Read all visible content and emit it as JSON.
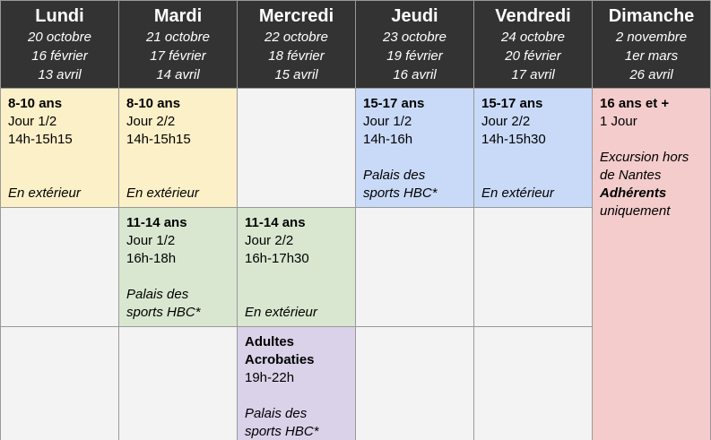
{
  "colors": {
    "header_bg": "#333333",
    "header_text": "#ffffff",
    "border": "#999999",
    "yellow": "#fcf0c8",
    "green": "#d9e7d0",
    "blue": "#c9daf8",
    "purple": "#d9d2e9",
    "pink": "#f4cccc",
    "empty": "#f3f3f3"
  },
  "header": {
    "columns": [
      {
        "day": "Lundi",
        "dates": [
          "20 octobre",
          "16 février",
          "13 avril"
        ]
      },
      {
        "day": "Mardi",
        "dates": [
          "21 octobre",
          "17 février",
          "14 avril"
        ]
      },
      {
        "day": "Mercredi",
        "dates": [
          "22 octobre",
          "18 février",
          "15 avril"
        ]
      },
      {
        "day": "Jeudi",
        "dates": [
          "23 octobre",
          "19 février",
          "16 avril"
        ]
      },
      {
        "day": "Vendredi",
        "dates": [
          "24 octobre",
          "20 février",
          "17 avril"
        ]
      },
      {
        "day": "Dimanche",
        "dates": [
          "2 novembre",
          "1er mars",
          "26 avril"
        ]
      }
    ]
  },
  "grid": {
    "rows": [
      [
        {
          "color": "yellow",
          "lines": [
            {
              "t": "8-10 ans",
              "s": "b"
            },
            {
              "t": "Jour 1/2"
            },
            {
              "t": "14h-15h15"
            },
            {
              "t": ""
            },
            {
              "t": ""
            },
            {
              "t": "En extérieur",
              "s": "i"
            }
          ]
        },
        {
          "color": "yellow",
          "lines": [
            {
              "t": "8-10 ans",
              "s": "b"
            },
            {
              "t": "Jour 2/2"
            },
            {
              "t": "14h-15h15"
            },
            {
              "t": ""
            },
            {
              "t": ""
            },
            {
              "t": "En extérieur",
              "s": "i"
            }
          ]
        },
        {
          "color": "empty",
          "lines": []
        },
        {
          "color": "blue",
          "lines": [
            {
              "t": "15-17 ans",
              "s": "b"
            },
            {
              "t": "Jour 1/2"
            },
            {
              "t": "14h-16h"
            },
            {
              "t": ""
            },
            {
              "t": "Palais des",
              "s": "i"
            },
            {
              "t": "sports HBC*",
              "s": "i"
            }
          ]
        },
        {
          "color": "blue",
          "lines": [
            {
              "t": "15-17 ans",
              "s": "b"
            },
            {
              "t": "Jour 2/2"
            },
            {
              "t": "14h-15h30"
            },
            {
              "t": ""
            },
            {
              "t": ""
            },
            {
              "t": "En extérieur",
              "s": "i"
            }
          ]
        },
        {
          "color": "pink",
          "rowspan": 3,
          "lines": [
            {
              "t": "16 ans et +",
              "s": "b"
            },
            {
              "t": "1 Jour"
            },
            {
              "t": ""
            },
            {
              "t": "Excursion hors",
              "s": "i"
            },
            {
              "t": "de Nantes",
              "s": "i"
            },
            {
              "t": "Adhérents",
              "s": "bi"
            },
            {
              "t": "uniquement",
              "s": "i"
            }
          ]
        }
      ],
      [
        {
          "color": "empty",
          "lines": []
        },
        {
          "color": "green",
          "lines": [
            {
              "t": "11-14 ans",
              "s": "b"
            },
            {
              "t": "Jour 1/2"
            },
            {
              "t": "16h-18h"
            },
            {
              "t": ""
            },
            {
              "t": "Palais des",
              "s": "i"
            },
            {
              "t": "sports HBC*",
              "s": "i"
            }
          ]
        },
        {
          "color": "green",
          "lines": [
            {
              "t": "11-14 ans",
              "s": "b"
            },
            {
              "t": "Jour 2/2"
            },
            {
              "t": "16h-17h30"
            },
            {
              "t": ""
            },
            {
              "t": ""
            },
            {
              "t": "En extérieur",
              "s": "i"
            }
          ]
        },
        {
          "color": "empty",
          "lines": []
        },
        {
          "color": "empty",
          "lines": []
        }
      ],
      [
        {
          "color": "empty",
          "lines": []
        },
        {
          "color": "empty",
          "lines": []
        },
        {
          "color": "purple",
          "lines": [
            {
              "t": "Adultes",
              "s": "b"
            },
            {
              "t": "Acrobaties",
              "s": "b"
            },
            {
              "t": "19h-22h"
            },
            {
              "t": ""
            },
            {
              "t": "Palais des",
              "s": "i"
            },
            {
              "t": "sports HBC*",
              "s": "i"
            }
          ]
        },
        {
          "color": "empty",
          "lines": []
        },
        {
          "color": "empty",
          "lines": []
        }
      ]
    ]
  }
}
